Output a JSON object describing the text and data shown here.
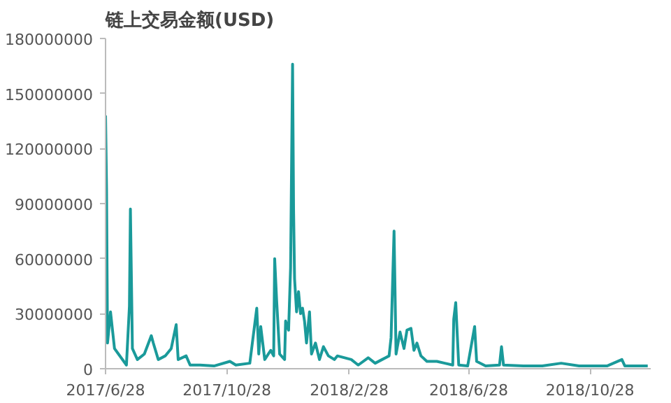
{
  "chart_data": {
    "type": "line",
    "title": "链上交易金额(USD)",
    "x": [
      "2017-06-28",
      "2017-06-29",
      "2017-06-30",
      "2017-07-03",
      "2017-07-07",
      "2017-07-11",
      "2017-07-19",
      "2017-07-22",
      "2017-07-23",
      "2017-07-25",
      "2017-07-30",
      "2017-08-06",
      "2017-08-13",
      "2017-08-15",
      "2017-08-20",
      "2017-08-27",
      "2017-09-02",
      "2017-09-07",
      "2017-09-09",
      "2017-09-17",
      "2017-09-21",
      "2017-10-01",
      "2017-10-15",
      "2017-10-31",
      "2017-11-06",
      "2017-11-20",
      "2017-11-27",
      "2017-11-29",
      "2017-12-01",
      "2017-12-05",
      "2017-12-11",
      "2017-12-14",
      "2017-12-15",
      "2017-12-17",
      "2017-12-20",
      "2017-12-25",
      "2017-12-26",
      "2017-12-29",
      "2017-12-31",
      "2018-01-02",
      "2018-01-03",
      "2018-01-04",
      "2018-01-06",
      "2018-01-08",
      "2018-01-10",
      "2018-01-12",
      "2018-01-14",
      "2018-01-16",
      "2018-01-19",
      "2018-01-21",
      "2018-01-25",
      "2018-01-29",
      "2018-02-02",
      "2018-02-07",
      "2018-02-13",
      "2018-02-16",
      "2018-03-02",
      "2018-03-09",
      "2018-03-19",
      "2018-03-26",
      "2018-04-02",
      "2018-04-09",
      "2018-04-11",
      "2018-04-14",
      "2018-04-16",
      "2018-04-20",
      "2018-04-24",
      "2018-04-27",
      "2018-05-01",
      "2018-05-04",
      "2018-05-07",
      "2018-05-11",
      "2018-05-17",
      "2018-05-27",
      "2018-06-04",
      "2018-06-12",
      "2018-06-13",
      "2018-06-15",
      "2018-06-18",
      "2018-06-27",
      "2018-07-04",
      "2018-07-06",
      "2018-07-15",
      "2018-07-29",
      "2018-07-31",
      "2018-08-02",
      "2018-08-22",
      "2018-09-10",
      "2018-09-29",
      "2018-10-17",
      "2018-11-14",
      "2018-11-29",
      "2018-12-02",
      "2018-12-25"
    ],
    "series": [
      {
        "color": "#1a9a9a",
        "values": [
          138000000,
          98000000,
          14000000,
          31000000,
          11000000,
          8000000,
          2000000,
          34000000,
          87000000,
          11000000,
          5000000,
          8000000,
          18000000,
          14000000,
          5000000,
          7000000,
          11000000,
          24000000,
          5000000,
          7000000,
          2000000,
          2000000,
          1500000,
          4000000,
          2000000,
          3000000,
          33000000,
          8000000,
          23000000,
          5000000,
          10000000,
          7000000,
          60000000,
          37000000,
          8000000,
          5000000,
          26000000,
          21000000,
          55000000,
          166000000,
          87000000,
          49000000,
          31000000,
          42000000,
          30000000,
          33000000,
          26000000,
          14000000,
          31000000,
          8000000,
          14000000,
          5000000,
          12000000,
          7000000,
          5000000,
          7000000,
          5000000,
          2000000,
          6000000,
          3000000,
          5000000,
          7000000,
          17000000,
          75000000,
          8000000,
          20000000,
          11000000,
          21000000,
          22000000,
          10000000,
          14000000,
          7000000,
          4000000,
          4000000,
          3000000,
          2000000,
          27000000,
          36000000,
          2000000,
          1500000,
          23000000,
          4000000,
          1500000,
          2000000,
          12000000,
          2000000,
          1500000,
          1500000,
          3000000,
          1500000,
          1500000,
          5000000,
          1500000,
          1500000
        ]
      }
    ],
    "xlim": [
      "2017-06-28",
      "2018-12-28"
    ],
    "xticks": [
      {
        "value": "2017-06-28",
        "label": "2017/6/28"
      },
      {
        "value": "2017-10-28",
        "label": "2017/10/28"
      },
      {
        "value": "2018-02-28",
        "label": "2018/2/28"
      },
      {
        "value": "2018-06-28",
        "label": "2018/6/28"
      },
      {
        "value": "2018-10-28",
        "label": "2018/10/28"
      }
    ],
    "ylim": [
      0,
      180000000
    ],
    "yticks": [
      0,
      30000000,
      60000000,
      90000000,
      120000000,
      150000000,
      180000000
    ],
    "marker": "none",
    "line_style": "solid"
  }
}
